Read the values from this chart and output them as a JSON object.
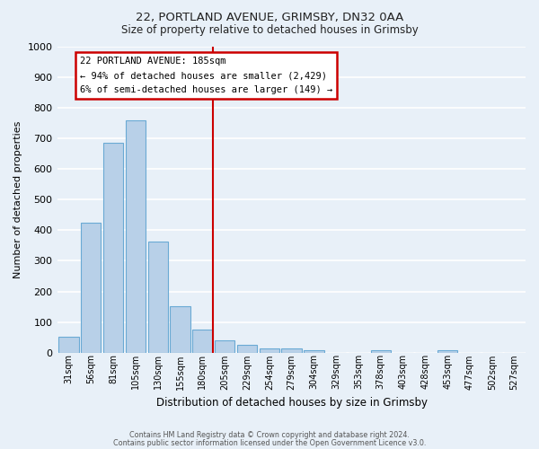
{
  "title1": "22, PORTLAND AVENUE, GRIMSBY, DN32 0AA",
  "title2": "Size of property relative to detached houses in Grimsby",
  "xlabel": "Distribution of detached houses by size in Grimsby",
  "ylabel": "Number of detached properties",
  "bar_labels": [
    "31sqm",
    "56sqm",
    "81sqm",
    "105sqm",
    "130sqm",
    "155sqm",
    "180sqm",
    "205sqm",
    "229sqm",
    "254sqm",
    "279sqm",
    "304sqm",
    "329sqm",
    "353sqm",
    "378sqm",
    "403sqm",
    "428sqm",
    "453sqm",
    "477sqm",
    "502sqm",
    "527sqm"
  ],
  "bar_values": [
    52,
    425,
    685,
    757,
    362,
    152,
    75,
    40,
    27,
    15,
    15,
    9,
    0,
    0,
    8,
    0,
    0,
    8,
    0,
    0,
    0
  ],
  "bar_color": "#b8d0e8",
  "bar_edge_color": "#6aaad4",
  "background_color": "#e8f0f8",
  "fig_background_color": "#e8f0f8",
  "grid_color": "#ffffff",
  "vline_color": "#cc0000",
  "ylim": [
    0,
    1000
  ],
  "yticks": [
    0,
    100,
    200,
    300,
    400,
    500,
    600,
    700,
    800,
    900,
    1000
  ],
  "annotation_title": "22 PORTLAND AVENUE: 185sqm",
  "annotation_line1": "← 94% of detached houses are smaller (2,429)",
  "annotation_line2": "6% of semi-detached houses are larger (149) →",
  "annotation_box_color": "#cc0000",
  "footer1": "Contains HM Land Registry data © Crown copyright and database right 2024.",
  "footer2": "Contains public sector information licensed under the Open Government Licence v3.0."
}
